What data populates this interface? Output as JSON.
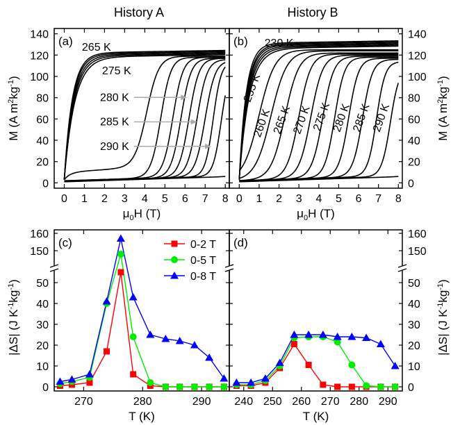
{
  "figure": {
    "history_titles": [
      "History A",
      "History B"
    ]
  },
  "chart_data": [
    {
      "id": "a",
      "type": "line",
      "panel_label": "(a)",
      "xlabel": "μ0H (T)",
      "ylabel": "M (A m2kg-1)",
      "xlim": [
        -0.5,
        8.2
      ],
      "ylim": [
        -5,
        145
      ],
      "xticks": [
        0,
        1,
        2,
        3,
        4,
        5,
        6,
        7,
        8
      ],
      "yticks": [
        0,
        20,
        40,
        60,
        80,
        100,
        120,
        140
      ],
      "annotations": [
        {
          "text": "265 K",
          "x": 1.6,
          "y": 124
        },
        {
          "text": "275 K",
          "x": 2.6,
          "y": 102
        },
        {
          "text": "280 K",
          "x": 2.5,
          "y": 77,
          "arrow_to": 6.1
        },
        {
          "text": "285 K",
          "x": 2.5,
          "y": 54,
          "arrow_to": 6.6
        },
        {
          "text": "290 K",
          "x": 2.5,
          "y": 31,
          "arrow_to": 7.3
        }
      ],
      "series": [
        {
          "m0": 3,
          "sat": 122,
          "sharp": 0.4
        },
        {
          "m0": 3,
          "sat": 121,
          "sharp": 0.42
        },
        {
          "m0": 3,
          "sat": 120,
          "sharp": 0.45
        },
        {
          "m0": 3,
          "sat": 119,
          "sharp": 0.48
        },
        {
          "m0": 3,
          "sat": 118,
          "sharp": 0.52
        },
        {
          "hc": 4.1,
          "w": 0.3,
          "sat": 119,
          "m0": 3,
          "low": 75
        },
        {
          "hc": 4.8,
          "w": 0.25,
          "sat": 118,
          "m0": 2
        },
        {
          "hc": 5.4,
          "w": 0.25,
          "sat": 118,
          "m0": 2
        },
        {
          "hc": 5.8,
          "w": 0.25,
          "sat": 117,
          "m0": 1.5
        },
        {
          "hc": 6.2,
          "w": 0.25,
          "sat": 117,
          "m0": 1.5
        },
        {
          "hc": 6.6,
          "w": 0.25,
          "sat": 116,
          "m0": 1.5
        },
        {
          "hc": 7.0,
          "w": 0.25,
          "sat": 115,
          "m0": 1.5
        },
        {
          "hc": 7.4,
          "w": 0.2,
          "sat": 114,
          "m0": 1.5
        },
        {
          "hc": 7.8,
          "w": 0.2,
          "sat": 110,
          "m0": 1.5
        },
        {
          "hc": 9.8,
          "w": 0.3,
          "sat": 110,
          "m0": 1
        }
      ]
    },
    {
      "id": "b",
      "type": "line",
      "panel_label": "(b)",
      "xlabel": "μ0H (T)",
      "ylabel": "M (A m2kg-1)",
      "xlim": [
        -0.5,
        8.2
      ],
      "ylim": [
        -5,
        145
      ],
      "xticks": [
        0,
        1,
        2,
        3,
        4,
        5,
        6,
        7,
        8
      ],
      "yticks": [
        0,
        20,
        40,
        60,
        80,
        100,
        120,
        140
      ],
      "annotations": [
        {
          "text": "230 K",
          "x": 2.0,
          "y": 128,
          "rot": 0
        },
        {
          "text": "255 K",
          "x": 0.8,
          "y": 88,
          "rot": -70
        },
        {
          "text": "260 K",
          "x": 1.3,
          "y": 55,
          "rot": -70
        },
        {
          "text": "265 K",
          "x": 2.3,
          "y": 58,
          "rot": -70
        },
        {
          "text": "270 K",
          "x": 3.3,
          "y": 58,
          "rot": -70
        },
        {
          "text": "275 K",
          "x": 4.3,
          "y": 61,
          "rot": -70
        },
        {
          "text": "280 K",
          "x": 5.3,
          "y": 60,
          "rot": -70
        },
        {
          "text": "285 K",
          "x": 6.3,
          "y": 60,
          "rot": -70
        },
        {
          "text": "290 K",
          "x": 7.3,
          "y": 60,
          "rot": -70
        }
      ],
      "series": [
        {
          "m0": 3,
          "sat": 131,
          "sharp": 0.35
        },
        {
          "m0": 3,
          "sat": 130,
          "sharp": 0.38
        },
        {
          "m0": 3,
          "sat": 129,
          "sharp": 0.4
        },
        {
          "m0": 3,
          "sat": 128,
          "sharp": 0.43
        },
        {
          "m0": 3,
          "sat": 127,
          "sharp": 0.46
        },
        {
          "m0": 3,
          "sat": 126,
          "sharp": 0.5
        },
        {
          "hc": 1.0,
          "w": 0.4,
          "sat": 125,
          "m0": 2
        },
        {
          "hc": 1.6,
          "w": 0.4,
          "sat": 124,
          "m0": 2
        },
        {
          "hc": 2.3,
          "w": 0.35,
          "sat": 122,
          "m0": 2
        },
        {
          "hc": 3.0,
          "w": 0.3,
          "sat": 121,
          "m0": 2
        },
        {
          "hc": 3.6,
          "w": 0.3,
          "sat": 120,
          "m0": 2
        },
        {
          "hc": 4.2,
          "w": 0.28,
          "sat": 119,
          "m0": 2
        },
        {
          "hc": 4.8,
          "w": 0.25,
          "sat": 118,
          "m0": 2
        },
        {
          "hc": 5.5,
          "w": 0.25,
          "sat": 117,
          "m0": 2
        },
        {
          "hc": 6.2,
          "w": 0.25,
          "sat": 116,
          "m0": 2
        },
        {
          "hc": 6.9,
          "w": 0.22,
          "sat": 114,
          "m0": 2
        },
        {
          "hc": 7.6,
          "w": 0.22,
          "sat": 108,
          "m0": 1.5
        },
        {
          "hc": 9.5,
          "w": 0.25,
          "sat": 110,
          "m0": 1
        }
      ]
    },
    {
      "id": "c",
      "type": "line",
      "panel_label": "(c)",
      "xlabel": "T (K)",
      "ylabel": "|ΔS| (J K-1kg-1)",
      "xlim": [
        265,
        294.7
      ],
      "y_lower": [
        -2,
        57
      ],
      "y_upper": [
        140,
        162
      ],
      "y_break": true,
      "xticks": [
        270,
        280,
        290
      ],
      "yticks_lower": [
        0,
        10,
        20,
        30,
        40,
        50
      ],
      "yticks_upper": [
        150,
        160
      ],
      "legend_position": "top-right",
      "series": [
        {
          "name": "0-2 T",
          "color": "#ff0000",
          "marker": "square",
          "x": [
            266,
            268,
            271,
            273.9,
            276.3,
            278.4,
            281.3,
            283.9,
            286.3,
            288.8,
            291.3,
            293.8
          ],
          "y": [
            0.5,
            1,
            2,
            17,
            55,
            6,
            0.5,
            0,
            0,
            0,
            0,
            0
          ]
        },
        {
          "name": "0-5 T",
          "color": "#00ee00",
          "marker": "circle",
          "x": [
            266,
            268,
            271,
            273.9,
            276.3,
            278.4,
            281.3,
            283.9,
            286.3,
            288.8,
            291.3,
            293.8
          ],
          "y": [
            1.5,
            2.5,
            4.5,
            40,
            148,
            24,
            2,
            0,
            0,
            0,
            0,
            0
          ]
        },
        {
          "name": "0-8 T",
          "color": "#0000ff",
          "marker": "triangle",
          "x": [
            266,
            268,
            271,
            273.9,
            276.3,
            278.4,
            281.3,
            283.9,
            286.3,
            288.8,
            291.3,
            293.8
          ],
          "y": [
            2.5,
            3.5,
            6,
            41,
            157,
            43,
            25,
            23,
            22,
            20,
            14,
            4
          ]
        }
      ]
    },
    {
      "id": "d",
      "type": "line",
      "panel_label": "(d)",
      "xlabel": "T (K)",
      "ylabel": "|ΔS| (J K-1kg-1)",
      "xlim": [
        235,
        295
      ],
      "y_lower": [
        -2,
        57
      ],
      "y_upper": [
        140,
        162
      ],
      "y_break": true,
      "xticks": [
        240,
        250,
        260,
        270,
        280,
        290
      ],
      "yticks_lower": [
        0,
        10,
        20,
        30,
        40,
        50
      ],
      "yticks_upper": [
        150,
        160
      ],
      "series": [
        {
          "name": "0-2 T",
          "color": "#ff0000",
          "marker": "square",
          "x": [
            237.5,
            242.5,
            247.5,
            252.5,
            257.5,
            262.5,
            267.5,
            272.5,
            277.5,
            282.5,
            287.5,
            292.5
          ],
          "y": [
            0.5,
            0.5,
            2,
            9,
            20.5,
            10.5,
            1,
            0,
            0,
            0,
            0,
            0
          ]
        },
        {
          "name": "0-5 T",
          "color": "#00ee00",
          "marker": "circle",
          "x": [
            237.5,
            242.5,
            247.5,
            252.5,
            257.5,
            262.5,
            267.5,
            272.5,
            277.5,
            282.5,
            287.5,
            292.5
          ],
          "y": [
            1,
            1,
            3,
            10,
            23.5,
            24,
            24,
            21.5,
            10.5,
            0.5,
            0,
            0
          ]
        },
        {
          "name": "0-8 T",
          "color": "#0000ff",
          "marker": "triangle",
          "x": [
            237.5,
            242.5,
            247.5,
            252.5,
            257.5,
            262.5,
            267.5,
            272.5,
            277.5,
            282.5,
            287.5,
            292.5
          ],
          "y": [
            2,
            2,
            4,
            11.5,
            25,
            25,
            25,
            24,
            24,
            23.5,
            20.5,
            10
          ]
        }
      ]
    }
  ]
}
